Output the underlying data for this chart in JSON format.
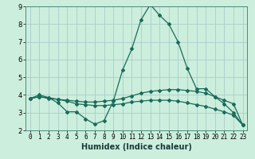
{
  "title": "",
  "xlabel": "Humidex (Indice chaleur)",
  "bg_color": "#cceedd",
  "grid_color": "#aacccc",
  "line_color": "#1a6b5a",
  "spine_color": "#4a8a7a",
  "xlim": [
    -0.5,
    23.5
  ],
  "ylim": [
    2,
    9
  ],
  "yticks": [
    2,
    3,
    4,
    5,
    6,
    7,
    8,
    9
  ],
  "xticks": [
    0,
    1,
    2,
    3,
    4,
    5,
    6,
    7,
    8,
    9,
    10,
    11,
    12,
    13,
    14,
    15,
    16,
    17,
    18,
    19,
    20,
    21,
    22,
    23
  ],
  "line1_x": [
    0,
    1,
    2,
    3,
    4,
    5,
    6,
    7,
    8,
    9,
    10,
    11,
    12,
    13,
    14,
    15,
    16,
    17,
    18,
    19,
    20,
    21,
    22,
    23
  ],
  "line1_y": [
    3.8,
    4.0,
    3.85,
    3.55,
    3.05,
    3.05,
    2.65,
    2.35,
    2.55,
    3.65,
    5.4,
    6.6,
    8.25,
    9.1,
    8.5,
    8.0,
    7.0,
    5.5,
    4.35,
    4.35,
    3.9,
    3.5,
    3.0,
    2.3
  ],
  "line2_x": [
    0,
    1,
    2,
    3,
    4,
    5,
    6,
    7,
    8,
    9,
    10,
    11,
    12,
    13,
    14,
    15,
    16,
    17,
    18,
    19,
    20,
    21,
    22,
    23
  ],
  "line2_y": [
    3.8,
    3.9,
    3.8,
    3.75,
    3.7,
    3.65,
    3.6,
    3.6,
    3.65,
    3.7,
    3.8,
    3.95,
    4.1,
    4.2,
    4.25,
    4.3,
    4.3,
    4.25,
    4.2,
    4.1,
    3.9,
    3.7,
    3.5,
    2.3
  ],
  "line3_x": [
    0,
    1,
    2,
    3,
    4,
    5,
    6,
    7,
    8,
    9,
    10,
    11,
    12,
    13,
    14,
    15,
    16,
    17,
    18,
    19,
    20,
    21,
    22,
    23
  ],
  "line3_y": [
    3.8,
    3.9,
    3.85,
    3.75,
    3.65,
    3.5,
    3.45,
    3.4,
    3.4,
    3.45,
    3.5,
    3.6,
    3.65,
    3.7,
    3.7,
    3.7,
    3.65,
    3.55,
    3.45,
    3.35,
    3.2,
    3.05,
    2.85,
    2.3
  ],
  "xlabel_fontsize": 7,
  "tick_fontsize": 5.5,
  "ytick_fontsize": 6,
  "linewidth": 0.9,
  "markersize": 2.0
}
